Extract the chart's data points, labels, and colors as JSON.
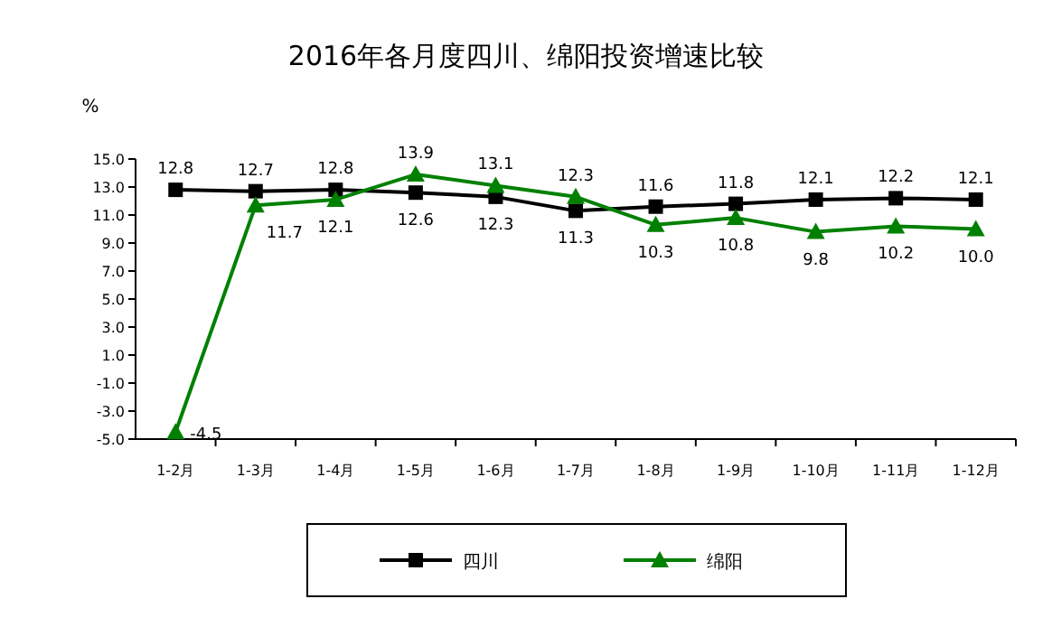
{
  "chart_data": {
    "type": "line",
    "title": "2016年各月度四川、绵阳投资增速比较",
    "ylabel": "%",
    "categories": [
      "1-2月",
      "1-3月",
      "1-4月",
      "1-5月",
      "1-6月",
      "1-7月",
      "1-8月",
      "1-9月",
      "1-10月",
      "1-11月",
      "1-12月"
    ],
    "ylim": [
      -5,
      15
    ],
    "yticks": [
      {
        "value": -5,
        "label": "-5.0"
      },
      {
        "value": -3,
        "label": "-3.0"
      },
      {
        "value": -1,
        "label": "-1.0"
      },
      {
        "value": 1,
        "label": "1.0"
      },
      {
        "value": 3,
        "label": "3.0"
      },
      {
        "value": 5,
        "label": "5.0"
      },
      {
        "value": 7,
        "label": "7.0"
      },
      {
        "value": 9,
        "label": "9.0"
      },
      {
        "value": 11,
        "label": "11.0"
      },
      {
        "value": 13,
        "label": "13.0"
      },
      {
        "value": 15,
        "label": "15.0"
      }
    ],
    "legend": "bottom",
    "grid": false,
    "series": [
      {
        "name": "四川",
        "color": "#000000",
        "marker": "square",
        "values": [
          12.8,
          12.7,
          12.8,
          12.6,
          12.3,
          11.3,
          11.6,
          11.8,
          12.1,
          12.2,
          12.1
        ],
        "value_labels": [
          "12.8",
          "12.7",
          "12.8",
          "12.6",
          "12.3",
          "11.3",
          "11.6",
          "11.8",
          "12.1",
          "12.2",
          "12.1"
        ]
      },
      {
        "name": "绵阳",
        "color": "#008000",
        "marker": "triangle",
        "values": [
          -4.5,
          11.7,
          12.1,
          13.9,
          13.1,
          12.3,
          10.3,
          10.8,
          9.8,
          10.2,
          10.0
        ],
        "value_labels": [
          "-4.5",
          "11.7",
          "12.1",
          "13.9",
          "13.1",
          "12.3",
          "10.3",
          "10.8",
          "9.8",
          "10.2",
          "10.0"
        ]
      }
    ]
  }
}
